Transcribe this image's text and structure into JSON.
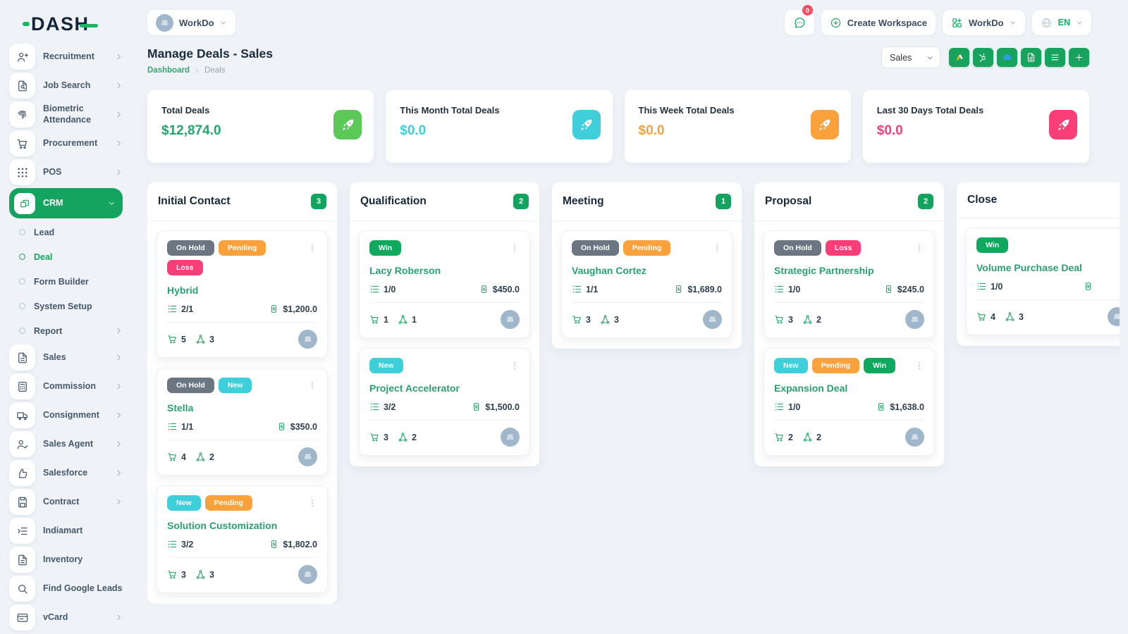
{
  "brand": {
    "logo_text": "DASH"
  },
  "header": {
    "workspace_label": "WorkDo",
    "notification_count": "0",
    "create_workspace_label": "Create Workspace",
    "org_label": "WorkDo",
    "language": "EN"
  },
  "sidebar": {
    "items": [
      {
        "type": "main",
        "icon": "user-plus",
        "label": "Recruitment",
        "chevron": true
      },
      {
        "type": "main",
        "icon": "file-search",
        "label": "Job Search",
        "chevron": true
      },
      {
        "type": "main",
        "icon": "fingerprint",
        "label": "Biometric Attendance",
        "chevron": true
      },
      {
        "type": "main",
        "icon": "cart",
        "label": "Procurement",
        "chevron": true
      },
      {
        "type": "main",
        "icon": "grid-dots",
        "label": "POS",
        "chevron": true
      },
      {
        "type": "main-active",
        "icon": "crm-boxes",
        "label": "CRM",
        "chevron": "down"
      },
      {
        "type": "sub",
        "label": "Lead"
      },
      {
        "type": "sub",
        "label": "Deal",
        "active": true
      },
      {
        "type": "sub",
        "label": "Form Builder"
      },
      {
        "type": "sub",
        "label": "System Setup"
      },
      {
        "type": "sub",
        "label": "Report",
        "chevron": true
      },
      {
        "type": "main",
        "icon": "file-lines",
        "label": "Sales",
        "chevron": true
      },
      {
        "type": "main",
        "icon": "calculator",
        "label": "Commission",
        "chevron": true
      },
      {
        "type": "main",
        "icon": "truck",
        "label": "Consignment",
        "chevron": true
      },
      {
        "type": "main",
        "icon": "user-check",
        "label": "Sales Agent",
        "chevron": true
      },
      {
        "type": "main",
        "icon": "thumbs-up",
        "label": "Salesforce",
        "chevron": true
      },
      {
        "type": "main",
        "icon": "save",
        "label": "Contract",
        "chevron": true
      },
      {
        "type": "main",
        "icon": "list-indent",
        "label": "Indiamart",
        "chevron": false
      },
      {
        "type": "main",
        "icon": "file-lines",
        "label": "Inventory",
        "chevron": false
      },
      {
        "type": "main",
        "icon": "search",
        "label": "Find Google Leads",
        "chevron": false
      },
      {
        "type": "main",
        "icon": "id-card",
        "label": "vCard",
        "chevron": true
      }
    ]
  },
  "page": {
    "title": "Manage Deals - Sales",
    "breadcrumb_home": "Dashboard",
    "breadcrumb_current": "Deals"
  },
  "toolbar": {
    "pipeline_selected": "Sales",
    "buttons": [
      {
        "icon": "google-ads"
      },
      {
        "icon": "hubspot"
      },
      {
        "icon": "cloud"
      },
      {
        "icon": "doc-sync"
      },
      {
        "icon": "list"
      },
      {
        "icon": "plus"
      }
    ]
  },
  "stats": [
    {
      "label": "Total Deals",
      "value": "$12,874.0",
      "value_color": "#23A66B",
      "tile_color": "#5CC858"
    },
    {
      "label": "This Month Total Deals",
      "value": "$0.0",
      "value_color": "#3ECFDB",
      "tile_color": "#3ECFDB"
    },
    {
      "label": "This Week Total Deals",
      "value": "$0.0",
      "value_color": "#F9A23B",
      "tile_color": "#F9A23B"
    },
    {
      "label": "Last 30 Days Total Deals",
      "value": "$0.0",
      "value_color": "#FA3E78",
      "tile_color": "#FA3E78"
    }
  ],
  "board": {
    "columns": [
      {
        "title": "Initial Contact",
        "count": "3",
        "cards": [
          {
            "badges": [
              {
                "label": "On Hold",
                "color": "gray"
              },
              {
                "label": "Pending",
                "color": "orange"
              },
              {
                "label": "Loss",
                "color": "pink"
              }
            ],
            "title": "Hybrid",
            "tasks": "2/1",
            "amount": "$1,200.0",
            "products": "5",
            "users": "3"
          },
          {
            "badges": [
              {
                "label": "On Hold",
                "color": "gray"
              },
              {
                "label": "New",
                "color": "cyan"
              }
            ],
            "title": "Stella",
            "tasks": "1/1",
            "amount": "$350.0",
            "products": "4",
            "users": "2"
          },
          {
            "badges": [
              {
                "label": "New",
                "color": "cyan"
              },
              {
                "label": "Pending",
                "color": "orange"
              }
            ],
            "title": "Solution Customization",
            "tasks": "3/2",
            "amount": "$1,802.0",
            "products": "3",
            "users": "3"
          }
        ]
      },
      {
        "title": "Qualification",
        "count": "2",
        "cards": [
          {
            "badges": [
              {
                "label": "Win",
                "color": "green"
              }
            ],
            "title": "Lacy Roberson",
            "tasks": "1/0",
            "amount": "$450.0",
            "products": "1",
            "users": "1"
          },
          {
            "badges": [
              {
                "label": "New",
                "color": "cyan"
              }
            ],
            "title": "Project Accelerator",
            "tasks": "3/2",
            "amount": "$1,500.0",
            "products": "3",
            "users": "2"
          }
        ]
      },
      {
        "title": "Meeting",
        "count": "1",
        "cards": [
          {
            "badges": [
              {
                "label": "On Hold",
                "color": "gray"
              },
              {
                "label": "Pending",
                "color": "orange"
              }
            ],
            "title": "Vaughan Cortez",
            "tasks": "1/1",
            "amount": "$1,689.0",
            "products": "3",
            "users": "3"
          }
        ]
      },
      {
        "title": "Proposal",
        "count": "2",
        "cards": [
          {
            "badges": [
              {
                "label": "On Hold",
                "color": "gray"
              },
              {
                "label": "Loss",
                "color": "pink"
              }
            ],
            "title": "Strategic Partnership",
            "tasks": "1/0",
            "amount": "$245.0",
            "products": "3",
            "users": "2"
          },
          {
            "badges": [
              {
                "label": "New",
                "color": "cyan"
              },
              {
                "label": "Pending",
                "color": "orange"
              },
              {
                "label": "Win",
                "color": "green"
              }
            ],
            "title": "Expansion Deal",
            "tasks": "1/0",
            "amount": "$1,638.0",
            "products": "2",
            "users": "2"
          }
        ]
      },
      {
        "title": "Close",
        "count": "",
        "cards": [
          {
            "badges": [
              {
                "label": "Win",
                "color": "green"
              }
            ],
            "title": "Volume Purchase Deal",
            "tasks": "1/0",
            "amount": "",
            "products": "4",
            "users": "3"
          }
        ]
      }
    ]
  },
  "colors": {
    "primary_green": "#14A45F",
    "cyan": "#3ECFDB",
    "orange": "#F9A23B",
    "pink": "#FA3E78",
    "gray_badge": "#6C7682",
    "deal_title_green": "#2BA06F",
    "notification_red": "#F64E60",
    "avatar_blue_gray": "#9FB6CB"
  }
}
